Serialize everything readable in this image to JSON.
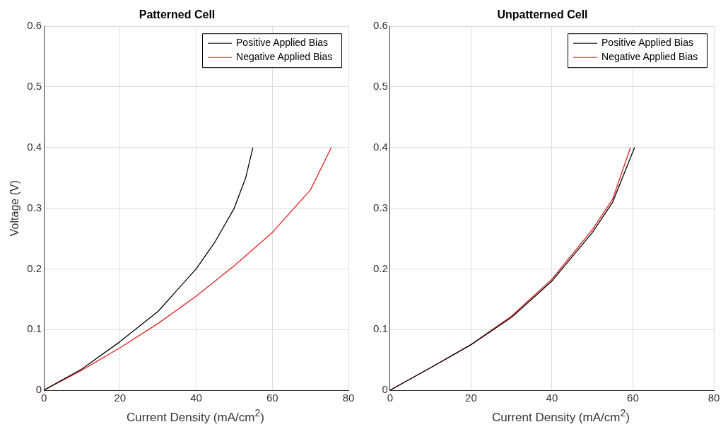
{
  "chart_data": [
    {
      "type": "line",
      "title": "Patterned Cell",
      "xlabel": "Current Density (mA/cm$^{2}$)",
      "ylabel": "Voltage (V)",
      "xlim": [
        0,
        80
      ],
      "xticks": [
        0,
        20,
        40,
        60,
        80
      ],
      "ylim": [
        0,
        0.6
      ],
      "yticks": [
        0,
        0.1,
        0.2,
        0.3,
        0.4,
        0.5,
        0.6
      ],
      "grid": true,
      "legend": "top right",
      "marker": "none",
      "line_style": "solid",
      "series": [
        {
          "name": "Positive Applied Bias",
          "color": "#000000",
          "x": [
            0,
            10,
            20,
            30,
            40,
            45,
            50,
            53,
            54.9
          ],
          "values": [
            0,
            0.035,
            0.08,
            0.13,
            0.2,
            0.245,
            0.3,
            0.35,
            0.4
          ]
        },
        {
          "name": "Negative Applied Bias",
          "color": "#e02020",
          "x": [
            0,
            10,
            20,
            30,
            40,
            50,
            60,
            70,
            75.5
          ],
          "values": [
            0,
            0.033,
            0.07,
            0.11,
            0.155,
            0.205,
            0.26,
            0.33,
            0.4
          ]
        }
      ]
    },
    {
      "type": "line",
      "title": "Unpatterned Cell",
      "xlabel": "Current Density (mA/cm$^{2}$)",
      "xlim": [
        0,
        80
      ],
      "xticks": [
        0,
        20,
        40,
        60,
        80
      ],
      "ylim": [
        0,
        0.6
      ],
      "yticks": [
        0,
        0.1,
        0.2,
        0.3,
        0.4,
        0.5,
        0.6
      ],
      "grid": true,
      "legend": "top right",
      "marker": "none",
      "line_style": "solid",
      "series": [
        {
          "name": "Positive Applied Bias",
          "color": "#000000",
          "x": [
            0,
            10,
            20,
            30,
            40,
            50,
            55,
            60.4
          ],
          "values": [
            0,
            0.037,
            0.075,
            0.12,
            0.18,
            0.26,
            0.31,
            0.4
          ]
        },
        {
          "name": "Negative Applied Bias",
          "color": "#e02020",
          "x": [
            0,
            10,
            20,
            30,
            40,
            50,
            55,
            59.4
          ],
          "values": [
            0,
            0.037,
            0.075,
            0.122,
            0.183,
            0.265,
            0.315,
            0.4
          ]
        }
      ]
    }
  ]
}
